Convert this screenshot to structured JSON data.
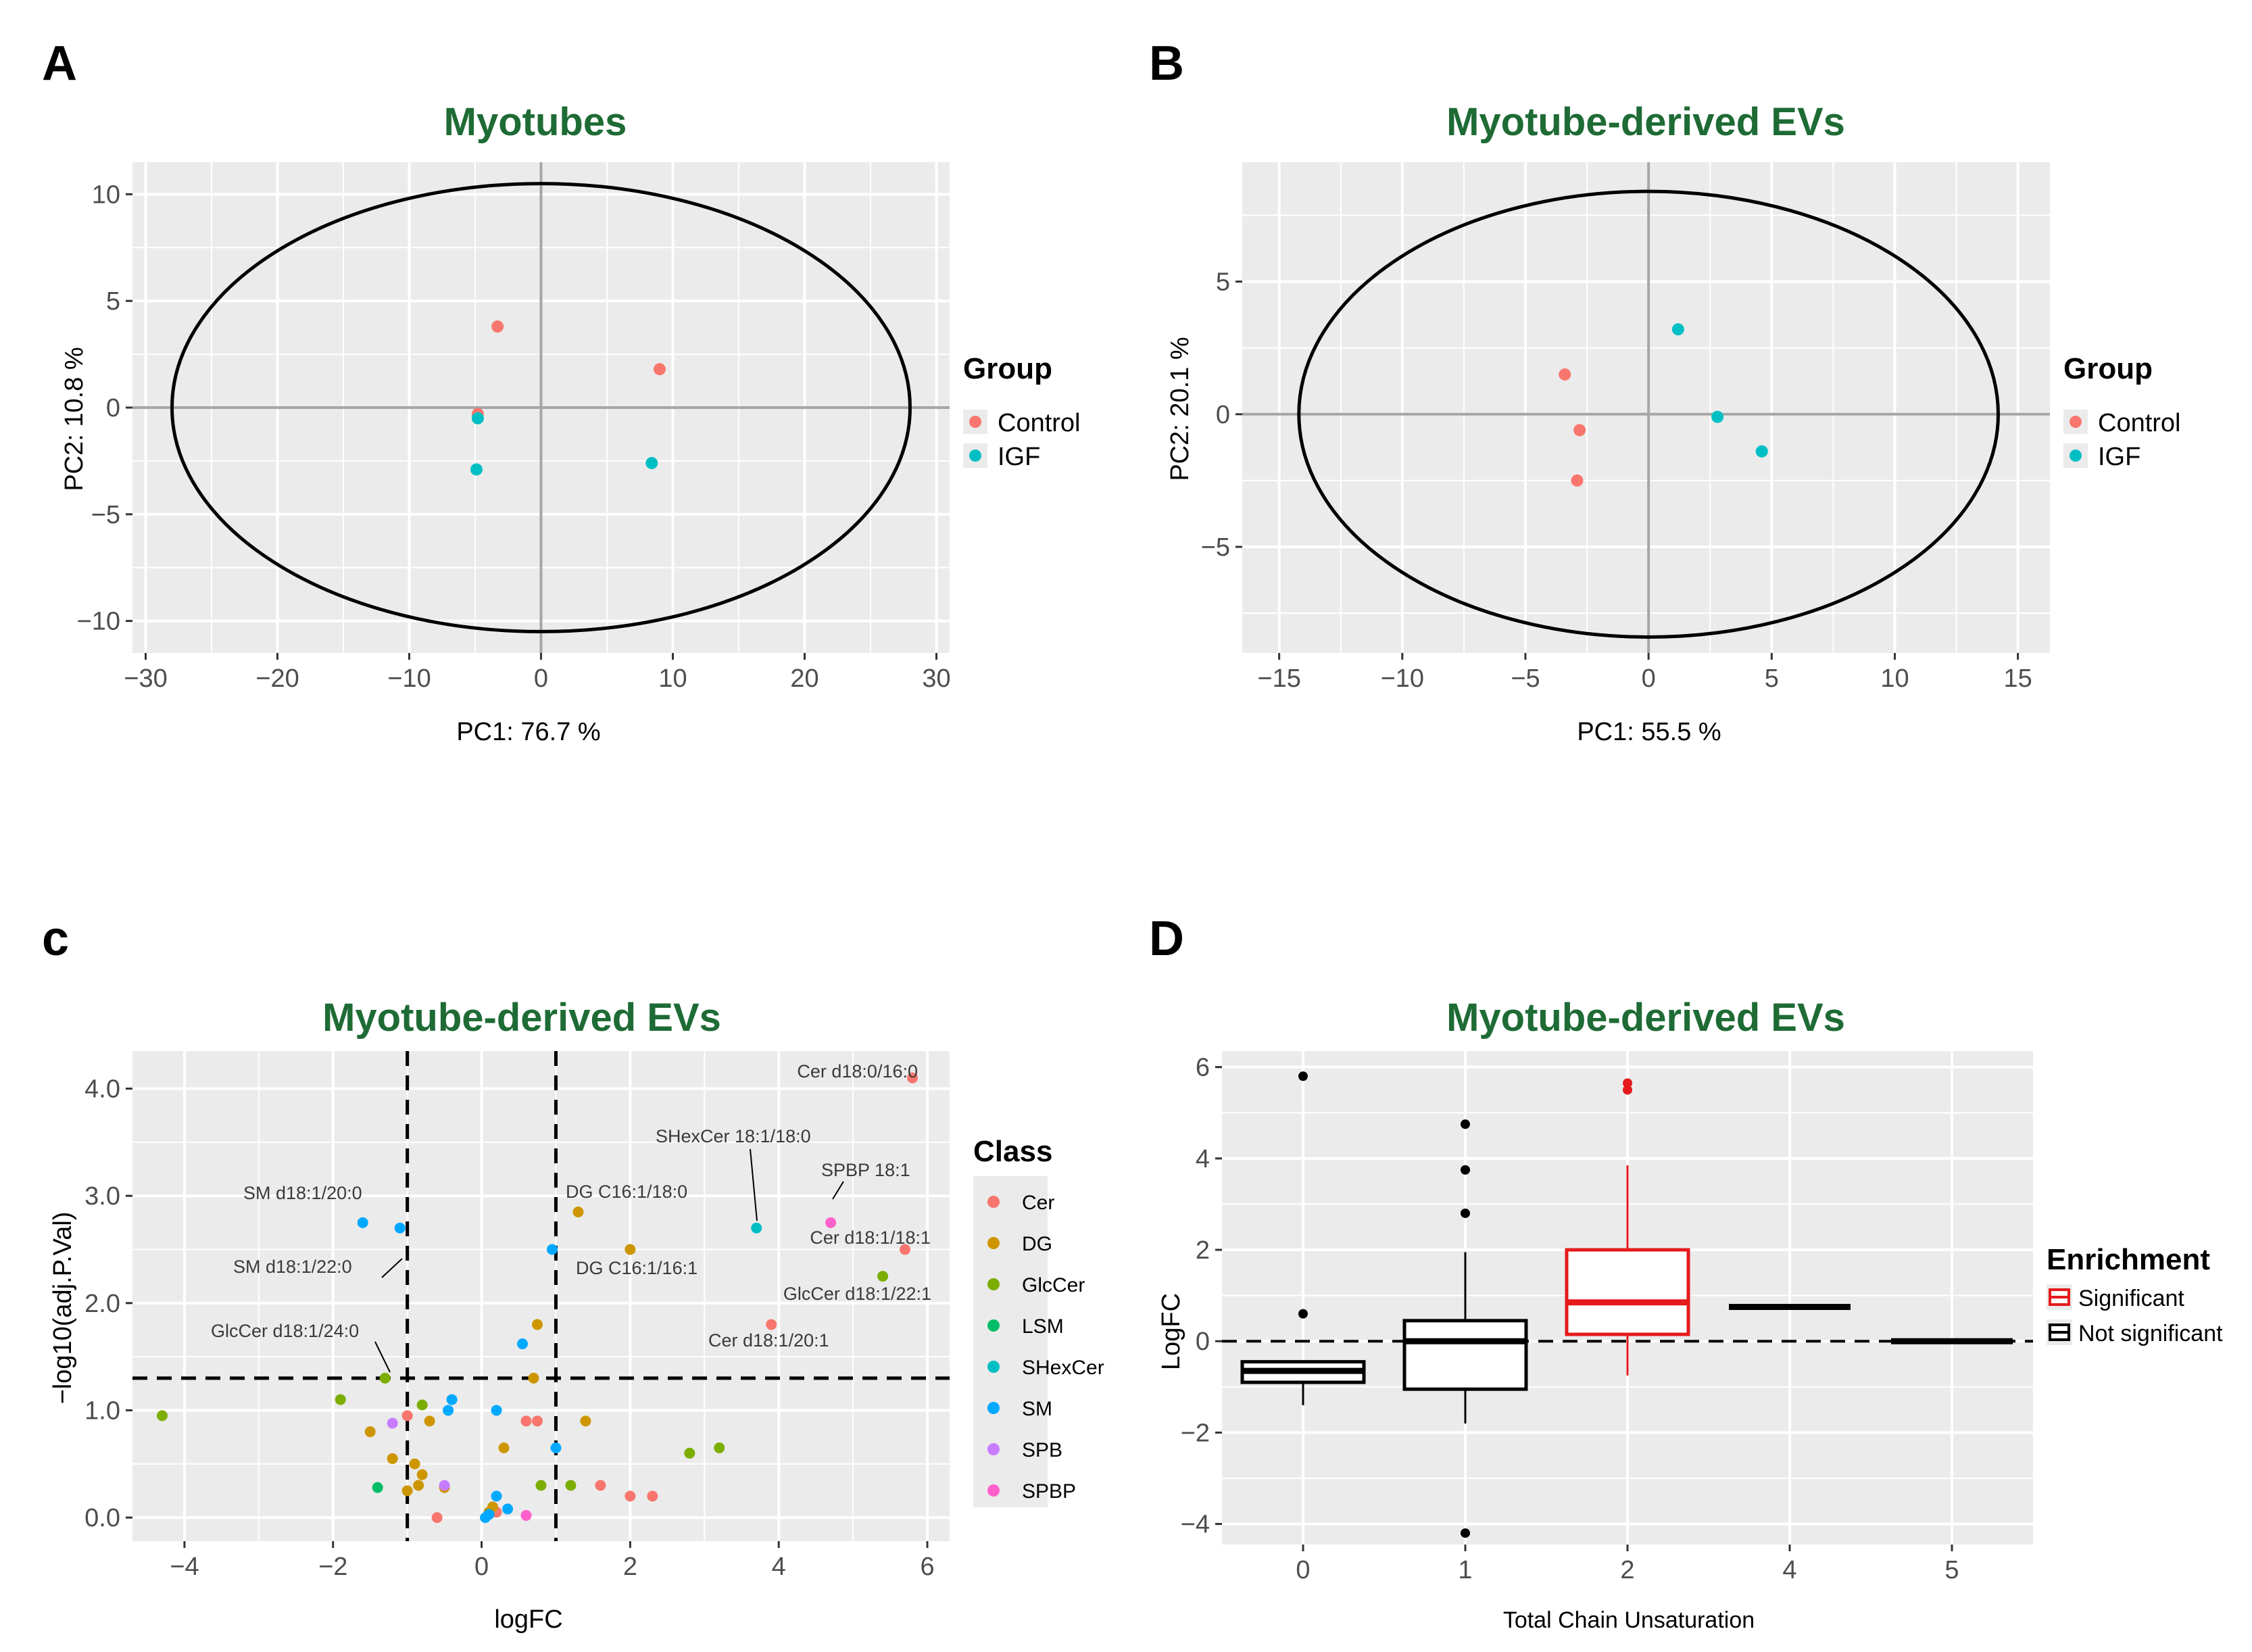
{
  "panels": {
    "a": "A",
    "b": "B",
    "c": "c",
    "d": "D"
  },
  "colors": {
    "title": "#1e6b35",
    "control": "#F8766D",
    "igf": "#00BFC4",
    "significant": "#E41A1C",
    "not_significant": "#000000",
    "panel_bg": "#EBEBEB",
    "grid": "#FFFFFF"
  },
  "chart_data": [
    {
      "type": "scatter",
      "id": "A",
      "title": "Myotubes",
      "xlabel": "PC1: 76.7 %",
      "ylabel": "PC2: 10.8 %",
      "xlim": [
        -31,
        31
      ],
      "ylim": [
        -11.5,
        11.5
      ],
      "xticks": [
        -30,
        -20,
        -10,
        0,
        10,
        20,
        30
      ],
      "xtick_labels": [
        "−30",
        "−20",
        "−10",
        "0",
        "10",
        "20",
        "30"
      ],
      "yticks": [
        -10,
        -5,
        0,
        5,
        10
      ],
      "ytick_labels": [
        "−10",
        "−5",
        "0",
        "5",
        "10"
      ],
      "ellipse": {
        "cx": 0,
        "cy": 0,
        "rx": 28,
        "ry": 10.5
      },
      "legend": {
        "title": "Group",
        "entries": [
          "Control",
          "IGF"
        ]
      },
      "series": [
        {
          "name": "Control",
          "points": [
            [
              -3.3,
              3.8
            ],
            [
              9.0,
              1.8
            ],
            [
              -4.8,
              -0.3
            ]
          ]
        },
        {
          "name": "IGF",
          "points": [
            [
              -4.8,
              -0.5
            ],
            [
              -4.9,
              -2.9
            ],
            [
              8.4,
              -2.6
            ]
          ]
        }
      ]
    },
    {
      "type": "scatter",
      "id": "B",
      "title": "Myotube-derived EVs",
      "xlabel": "PC1: 55.5 %",
      "ylabel": "PC2: 20.1 %",
      "xlim": [
        -16.5,
        16.3
      ],
      "ylim": [
        -9,
        9.5
      ],
      "xticks": [
        -15,
        -10,
        -5,
        0,
        5,
        10,
        15
      ],
      "xtick_labels": [
        "−15",
        "−10",
        "−5",
        "0",
        "5",
        "10",
        "15"
      ],
      "yticks": [
        -5,
        0,
        5
      ],
      "ytick_labels": [
        "−5",
        "0",
        "5"
      ],
      "ellipse": {
        "cx": 0,
        "cy": 0,
        "rx": 14.2,
        "ry": 8.4
      },
      "legend": {
        "title": "Group",
        "entries": [
          "Control",
          "IGF"
        ]
      },
      "series": [
        {
          "name": "Control",
          "points": [
            [
              -3.4,
              1.5
            ],
            [
              -2.8,
              -0.6
            ],
            [
              -2.9,
              -2.5
            ]
          ]
        },
        {
          "name": "IGF",
          "points": [
            [
              1.2,
              3.2
            ],
            [
              2.8,
              -0.1
            ],
            [
              4.6,
              -1.4
            ]
          ]
        }
      ]
    },
    {
      "type": "scatter",
      "id": "C",
      "title": "Myotube-derived EVs",
      "xlabel": "logFC",
      "ylabel": "−log10(adj.P.Val)",
      "xlim": [
        -4.7,
        6.3
      ],
      "ylim": [
        -0.22,
        4.35
      ],
      "xticks": [
        -4,
        -2,
        0,
        2,
        4,
        6
      ],
      "xtick_labels": [
        "−4",
        "−2",
        "0",
        "2",
        "4",
        "6"
      ],
      "yticks": [
        0,
        1,
        2,
        3,
        4
      ],
      "ytick_labels": [
        "0.0",
        "1.0",
        "2.0",
        "3.0",
        "4.0"
      ],
      "thresholds": {
        "vlines": [
          -1,
          1
        ],
        "hline": 1.3
      },
      "legend": {
        "title": "Class",
        "entries": [
          "Cer",
          "DG",
          "GlcCer",
          "LSM",
          "SHexCer",
          "SM",
          "SPB",
          "SPBP"
        ]
      },
      "class_colors": {
        "Cer": "#F8766D",
        "DG": "#CD9600",
        "GlcCer": "#7CAE00",
        "LSM": "#00BE67",
        "SHexCer": "#00BFC4",
        "SM": "#00A9FF",
        "SPB": "#C77CFF",
        "SPBP": "#FF61CC"
      },
      "points": [
        {
          "class": "Cer",
          "x": 5.8,
          "y": 4.1
        },
        {
          "class": "Cer",
          "x": 5.7,
          "y": 2.5
        },
        {
          "class": "Cer",
          "x": 3.9,
          "y": 1.8
        },
        {
          "class": "Cer",
          "x": 0.6,
          "y": 0.9
        },
        {
          "class": "Cer",
          "x": 0.75,
          "y": 0.9
        },
        {
          "class": "Cer",
          "x": 1.6,
          "y": 0.3
        },
        {
          "class": "Cer",
          "x": 2.0,
          "y": 0.2
        },
        {
          "class": "Cer",
          "x": 2.3,
          "y": 0.2
        },
        {
          "class": "Cer",
          "x": 0.2,
          "y": 0.05
        },
        {
          "class": "Cer",
          "x": -1.0,
          "y": 0.95
        },
        {
          "class": "Cer",
          "x": -0.6,
          "y": 0.0
        },
        {
          "class": "DG",
          "x": 1.3,
          "y": 2.85
        },
        {
          "class": "DG",
          "x": 2.0,
          "y": 2.5
        },
        {
          "class": "DG",
          "x": 0.75,
          "y": 1.8
        },
        {
          "class": "DG",
          "x": 0.7,
          "y": 1.3
        },
        {
          "class": "DG",
          "x": 1.4,
          "y": 0.9
        },
        {
          "class": "DG",
          "x": 0.3,
          "y": 0.65
        },
        {
          "class": "DG",
          "x": -1.5,
          "y": 0.8
        },
        {
          "class": "DG",
          "x": -1.2,
          "y": 0.55
        },
        {
          "class": "DG",
          "x": -0.7,
          "y": 0.9
        },
        {
          "class": "DG",
          "x": -0.9,
          "y": 0.5
        },
        {
          "class": "DG",
          "x": -0.8,
          "y": 0.4
        },
        {
          "class": "DG",
          "x": -1.0,
          "y": 0.25
        },
        {
          "class": "DG",
          "x": -0.85,
          "y": 0.3
        },
        {
          "class": "DG",
          "x": -0.5,
          "y": 0.28
        },
        {
          "class": "DG",
          "x": 0.1,
          "y": 0.05
        },
        {
          "class": "DG",
          "x": 0.15,
          "y": 0.1
        },
        {
          "class": "GlcCer",
          "x": 5.4,
          "y": 2.25
        },
        {
          "class": "GlcCer",
          "x": -1.3,
          "y": 1.3
        },
        {
          "class": "GlcCer",
          "x": -1.9,
          "y": 1.1
        },
        {
          "class": "GlcCer",
          "x": -4.3,
          "y": 0.95
        },
        {
          "class": "GlcCer",
          "x": 3.2,
          "y": 0.65
        },
        {
          "class": "GlcCer",
          "x": 2.8,
          "y": 0.6
        },
        {
          "class": "GlcCer",
          "x": 1.2,
          "y": 0.3
        },
        {
          "class": "GlcCer",
          "x": 0.8,
          "y": 0.3
        },
        {
          "class": "GlcCer",
          "x": -0.8,
          "y": 1.05
        },
        {
          "class": "LSM",
          "x": -1.4,
          "y": 0.28
        },
        {
          "class": "SHexCer",
          "x": 3.7,
          "y": 2.7
        },
        {
          "class": "SM",
          "x": -1.6,
          "y": 2.75
        },
        {
          "class": "SM",
          "x": -1.1,
          "y": 2.7
        },
        {
          "class": "SM",
          "x": 0.95,
          "y": 2.5
        },
        {
          "class": "SM",
          "x": 0.55,
          "y": 1.62
        },
        {
          "class": "SM",
          "x": -0.4,
          "y": 1.1
        },
        {
          "class": "SM",
          "x": -0.45,
          "y": 1.0
        },
        {
          "class": "SM",
          "x": 0.2,
          "y": 1.0
        },
        {
          "class": "SM",
          "x": 1.0,
          "y": 0.65
        },
        {
          "class": "SM",
          "x": 0.2,
          "y": 0.2
        },
        {
          "class": "SM",
          "x": 0.35,
          "y": 0.08
        },
        {
          "class": "SM",
          "x": 0.05,
          "y": 0.0
        },
        {
          "class": "SM",
          "x": 0.1,
          "y": 0.03
        },
        {
          "class": "SPB",
          "x": -1.2,
          "y": 0.88
        },
        {
          "class": "SPB",
          "x": -0.5,
          "y": 0.3
        },
        {
          "class": "SPBP",
          "x": 4.7,
          "y": 2.75
        },
        {
          "class": "SPBP",
          "x": 0.6,
          "y": 0.02
        }
      ],
      "annotations": [
        {
          "text": "Cer d18:0/16:0",
          "x": 5.8,
          "y": 4.1
        },
        {
          "text": "SHexCer 18:1/18:0",
          "x": 3.7,
          "y": 2.7
        },
        {
          "text": "SPBP 18:1",
          "x": 4.7,
          "y": 2.75
        },
        {
          "text": "Cer d18:1/18:1",
          "x": 5.7,
          "y": 2.5
        },
        {
          "text": "GlcCer d18:1/22:1",
          "x": 5.4,
          "y": 2.25
        },
        {
          "text": "Cer d18:1/20:1",
          "x": 3.9,
          "y": 1.8
        },
        {
          "text": "DG C16:1/18:0",
          "x": 1.3,
          "y": 2.85
        },
        {
          "text": "DG C16:1/16:1",
          "x": 2.0,
          "y": 2.5
        },
        {
          "text": "SM d18:1/20:0",
          "x": -1.6,
          "y": 2.75
        },
        {
          "text": "SM d18:1/22:0",
          "x": -1.1,
          "y": 2.7
        },
        {
          "text": "GlcCer d18:1/24:0",
          "x": -1.3,
          "y": 1.3
        }
      ]
    },
    {
      "type": "box",
      "id": "D",
      "title": "Myotube-derived EVs",
      "xlabel": "Total Chain Unsaturation",
      "ylabel": "LogFC",
      "ylim": [
        -4.45,
        6.35
      ],
      "yticks": [
        -4,
        -2,
        0,
        2,
        4,
        6
      ],
      "ytick_labels": [
        "−4",
        "−2",
        "0",
        "2",
        "4",
        "6"
      ],
      "hline": 0,
      "categories": [
        "0",
        "1",
        "2",
        "4",
        "5"
      ],
      "legend": {
        "title": "Enrichment",
        "entries": [
          "Significant",
          "Not significant"
        ]
      },
      "boxes": [
        {
          "category": "0",
          "enrichment": "Not significant",
          "min": -1.4,
          "q1": -0.9,
          "median": -0.65,
          "q3": -0.45,
          "max": -0.45,
          "outliers": [
            5.8,
            0.6
          ]
        },
        {
          "category": "1",
          "enrichment": "Not significant",
          "min": -1.8,
          "q1": -1.05,
          "median": 0.0,
          "q3": 0.45,
          "max": 1.95,
          "outliers": [
            4.75,
            3.75,
            2.8,
            -4.2
          ]
        },
        {
          "category": "2",
          "enrichment": "Significant",
          "min": -0.75,
          "q1": 0.15,
          "median": 0.85,
          "q3": 2.0,
          "max": 3.85,
          "outliers": [
            5.65,
            5.5
          ]
        },
        {
          "category": "4",
          "enrichment": "Not significant",
          "min": 0.75,
          "q1": 0.75,
          "median": 0.75,
          "q3": 0.75,
          "max": 0.75,
          "outliers": []
        },
        {
          "category": "5",
          "enrichment": "Not significant",
          "min": 0.0,
          "q1": 0.0,
          "median": 0.0,
          "q3": 0.0,
          "max": 0.0,
          "outliers": []
        }
      ]
    }
  ]
}
